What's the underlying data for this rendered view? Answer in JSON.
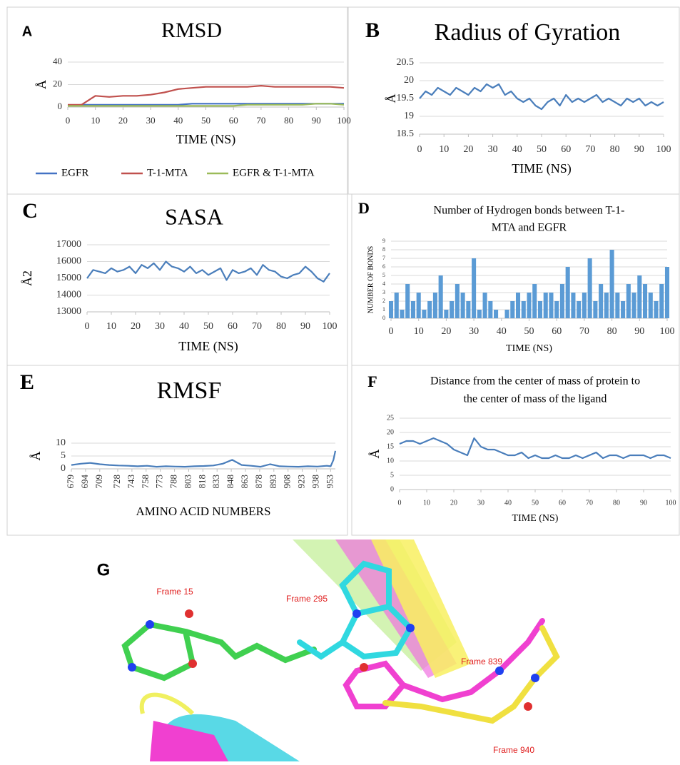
{
  "chart_data": [
    {
      "type": "line",
      "label": "A",
      "title": "RMSD",
      "xlabel": "TIME (NS)",
      "ylabel": "Å",
      "x": [
        0,
        5,
        10,
        15,
        20,
        25,
        30,
        35,
        40,
        45,
        50,
        55,
        60,
        65,
        70,
        75,
        80,
        85,
        90,
        95,
        100
      ],
      "series": [
        {
          "name": "EGFR",
          "color": "#4472c4",
          "values": [
            1,
            2,
            2,
            2,
            2,
            2,
            2,
            2,
            2,
            3,
            3,
            3,
            3,
            3,
            3,
            3,
            3,
            3,
            3,
            3,
            3
          ]
        },
        {
          "name": "T-1-MTA",
          "color": "#c0504d",
          "values": [
            2,
            2,
            10,
            9,
            10,
            10,
            11,
            13,
            16,
            17,
            18,
            18,
            18,
            18,
            19,
            18,
            18,
            18,
            18,
            18,
            17
          ]
        },
        {
          "name": "EGFR & T-1-MTA",
          "color": "#9bbb59",
          "values": [
            1,
            1,
            1,
            1,
            1,
            1,
            1,
            1,
            1,
            1,
            1,
            1,
            1,
            2,
            2,
            2,
            2,
            2,
            3,
            3,
            2
          ]
        }
      ],
      "xlim": [
        0,
        100
      ],
      "xticks": [
        0,
        10,
        20,
        30,
        40,
        50,
        60,
        70,
        80,
        90,
        100
      ],
      "ylim": [
        0,
        40
      ],
      "yticks": [
        0,
        20,
        40
      ],
      "grid": true,
      "legend": "bottom"
    },
    {
      "type": "line",
      "label": "B",
      "title": "Radius of Gyration",
      "xlabel": "TIME (NS)",
      "ylabel": "Å",
      "x": [
        0,
        2.5,
        5,
        7.5,
        10,
        12.5,
        15,
        17.5,
        20,
        22.5,
        25,
        27.5,
        30,
        32.5,
        35,
        37.5,
        40,
        42.5,
        45,
        47.5,
        50,
        52.5,
        55,
        57.5,
        60,
        62.5,
        65,
        67.5,
        70,
        72.5,
        75,
        77.5,
        80,
        82.5,
        85,
        87.5,
        90,
        92.5,
        95,
        97.5,
        100
      ],
      "values": [
        19.5,
        19.7,
        19.6,
        19.8,
        19.7,
        19.6,
        19.8,
        19.7,
        19.6,
        19.8,
        19.7,
        19.9,
        19.8,
        19.9,
        19.6,
        19.7,
        19.5,
        19.4,
        19.5,
        19.3,
        19.2,
        19.4,
        19.5,
        19.3,
        19.6,
        19.4,
        19.5,
        19.4,
        19.5,
        19.6,
        19.4,
        19.5,
        19.4,
        19.3,
        19.5,
        19.4,
        19.5,
        19.3,
        19.4,
        19.3,
        19.4
      ],
      "color": "#4a7ebb",
      "xlim": [
        0,
        100
      ],
      "xticks": [
        0,
        10,
        20,
        30,
        40,
        50,
        60,
        70,
        80,
        90,
        100
      ],
      "ylim": [
        18.5,
        20.5
      ],
      "yticks": [
        18.5,
        19,
        19.5,
        20,
        20.5
      ],
      "grid": true
    },
    {
      "type": "line",
      "label": "C",
      "title": "SASA",
      "xlabel": "TIME (NS)",
      "ylabel": "Å2",
      "x": [
        0,
        2.5,
        5,
        7.5,
        10,
        12.5,
        15,
        17.5,
        20,
        22.5,
        25,
        27.5,
        30,
        32.5,
        35,
        37.5,
        40,
        42.5,
        45,
        47.5,
        50,
        52.5,
        55,
        57.5,
        60,
        62.5,
        65,
        67.5,
        70,
        72.5,
        75,
        77.5,
        80,
        82.5,
        85,
        87.5,
        90,
        92.5,
        95,
        97.5,
        100
      ],
      "values": [
        15000,
        15500,
        15400,
        15300,
        15600,
        15400,
        15500,
        15700,
        15300,
        15800,
        15600,
        15900,
        15500,
        16000,
        15700,
        15600,
        15400,
        15700,
        15300,
        15500,
        15200,
        15400,
        15600,
        14900,
        15500,
        15300,
        15400,
        15600,
        15200,
        15800,
        15500,
        15400,
        15100,
        15000,
        15200,
        15300,
        15700,
        15400,
        15000,
        14800,
        15300
      ],
      "color": "#4a7ebb",
      "xlim": [
        0,
        100
      ],
      "xticks": [
        0,
        10,
        20,
        30,
        40,
        50,
        60,
        70,
        80,
        90,
        100
      ],
      "ylim": [
        13000,
        17000
      ],
      "yticks": [
        13000,
        14000,
        15000,
        16000,
        17000
      ],
      "grid": true
    },
    {
      "type": "bar",
      "label": "D",
      "title": [
        "Number of Hydrogen bonds between T-1-",
        "MTA and EGFR"
      ],
      "xlabel": "TIME (NS)",
      "ylabel": "NUMBER OF BONDS",
      "x": [
        0,
        2,
        4,
        6,
        8,
        10,
        12,
        14,
        16,
        18,
        20,
        22,
        24,
        26,
        28,
        30,
        32,
        34,
        36,
        38,
        40,
        42,
        44,
        46,
        48,
        50,
        52,
        54,
        56,
        58,
        60,
        62,
        64,
        66,
        68,
        70,
        72,
        74,
        76,
        78,
        80,
        82,
        84,
        86,
        88,
        90,
        92,
        94,
        96,
        98,
        100
      ],
      "values": [
        2,
        3,
        1,
        4,
        2,
        3,
        1,
        2,
        3,
        5,
        1,
        2,
        4,
        3,
        2,
        7,
        1,
        3,
        2,
        1,
        0,
        1,
        2,
        3,
        2,
        3,
        4,
        2,
        3,
        3,
        2,
        4,
        6,
        3,
        2,
        3,
        7,
        2,
        4,
        3,
        8,
        3,
        2,
        4,
        3,
        5,
        4,
        3,
        2,
        4,
        6
      ],
      "color": "#5b9bd5",
      "xlim": [
        0,
        100
      ],
      "xticks": [
        0,
        10,
        20,
        30,
        40,
        50,
        60,
        70,
        80,
        90,
        100
      ],
      "ylim": [
        0,
        9
      ],
      "yticks": [
        0,
        1,
        2,
        3,
        4,
        5,
        6,
        7,
        8,
        9
      ],
      "grid": true
    },
    {
      "type": "line",
      "label": "E",
      "title": "RMSF",
      "xlabel": "AMINO ACID NUMBERS",
      "ylabel": "Å",
      "x": [
        679,
        689,
        699,
        709,
        719,
        729,
        739,
        749,
        759,
        769,
        779,
        789,
        799,
        809,
        819,
        829,
        839,
        849,
        859,
        869,
        879,
        889,
        899,
        909,
        919,
        929,
        939,
        949,
        953,
        956,
        958
      ],
      "values": [
        1.5,
        2,
        2.3,
        1.8,
        1.5,
        1.3,
        1.2,
        1.0,
        1.2,
        0.8,
        1.0,
        0.9,
        0.8,
        1.0,
        1.1,
        1.3,
        2.0,
        3.5,
        1.5,
        1.2,
        0.8,
        1.8,
        1.0,
        0.9,
        0.8,
        1.0,
        0.9,
        1.2,
        1.0,
        3.5,
        7
      ],
      "color": "#4a7ebb",
      "xlim": [
        679,
        958
      ],
      "xticks": [
        679,
        694,
        709,
        728,
        743,
        758,
        773,
        788,
        803,
        818,
        833,
        848,
        863,
        878,
        893,
        908,
        923,
        938,
        953
      ],
      "ylim": [
        0,
        10
      ],
      "yticks": [
        0,
        5,
        10
      ],
      "grid": true
    },
    {
      "type": "line",
      "label": "F",
      "title": [
        "Distance from the center of mass of protein to",
        "the center of mass of the ligand"
      ],
      "xlabel": "TIME (NS)",
      "ylabel": "Å",
      "x": [
        0,
        2.5,
        5,
        7.5,
        10,
        12.5,
        15,
        17.5,
        20,
        22.5,
        25,
        27.5,
        30,
        32.5,
        35,
        37.5,
        40,
        42.5,
        45,
        47.5,
        50,
        52.5,
        55,
        57.5,
        60,
        62.5,
        65,
        67.5,
        70,
        72.5,
        75,
        77.5,
        80,
        82.5,
        85,
        87.5,
        90,
        92.5,
        95,
        97.5,
        100
      ],
      "values": [
        16,
        17,
        17,
        16,
        17,
        18,
        17,
        16,
        14,
        13,
        12,
        18,
        15,
        14,
        14,
        13,
        12,
        12,
        13,
        11,
        12,
        11,
        11,
        12,
        11,
        11,
        12,
        11,
        12,
        13,
        11,
        12,
        12,
        11,
        12,
        12,
        12,
        11,
        12,
        12,
        11
      ],
      "color": "#4a7ebb",
      "xlim": [
        0,
        100
      ],
      "xticks": [
        0,
        10,
        20,
        30,
        40,
        50,
        60,
        70,
        80,
        90,
        100
      ],
      "ylim": [
        0,
        25
      ],
      "yticks": [
        0,
        5,
        10,
        15,
        20,
        25
      ],
      "grid": true
    }
  ],
  "image": {
    "label": "G",
    "annotations": [
      "Frame 15",
      "Frame 295",
      "Frame 839",
      "Frame 940"
    ]
  }
}
